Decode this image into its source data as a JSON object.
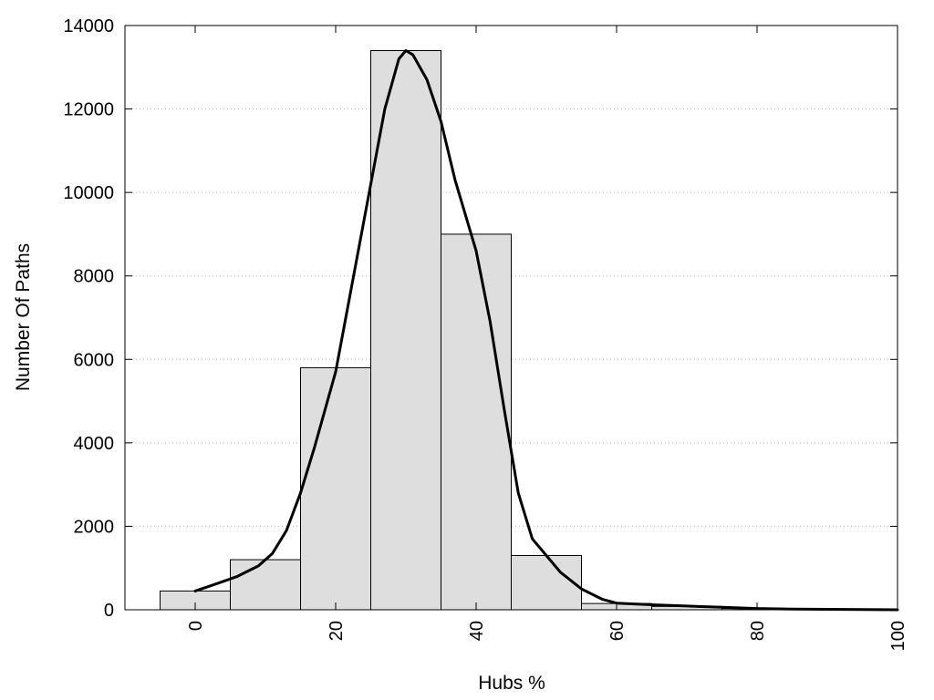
{
  "chart_data": {
    "type": "bar",
    "title": "",
    "xlabel": "Hubs %",
    "ylabel": "Number Of Paths",
    "xlim": [
      -10,
      100
    ],
    "ylim": [
      0,
      14000
    ],
    "x_ticks": [
      0,
      20,
      40,
      60,
      80,
      100
    ],
    "y_ticks": [
      0,
      2000,
      4000,
      6000,
      8000,
      10000,
      12000,
      14000
    ],
    "grid": "horizontal-dotted",
    "colors": {
      "bar_fill": "#dedede",
      "bar_stroke": "#000000",
      "curve": "#000000",
      "grid": "#bbbbbb"
    },
    "bin_width": 10,
    "bins": [
      {
        "center": 0,
        "value": 450
      },
      {
        "center": 10,
        "value": 1200
      },
      {
        "center": 20,
        "value": 5800
      },
      {
        "center": 30,
        "value": 13400
      },
      {
        "center": 40,
        "value": 9000
      },
      {
        "center": 50,
        "value": 1300
      },
      {
        "center": 60,
        "value": 150
      },
      {
        "center": 70,
        "value": 80
      },
      {
        "center": 80,
        "value": 30
      },
      {
        "center": 90,
        "value": 15
      }
    ],
    "curve": {
      "x": [
        0,
        3,
        6,
        9,
        11,
        13,
        15,
        17,
        20,
        23,
        25,
        27,
        29,
        30,
        31,
        33,
        35,
        37,
        40,
        42,
        44,
        46,
        48,
        50,
        52,
        55,
        58,
        60,
        65,
        70,
        75,
        80,
        85,
        90,
        95,
        100
      ],
      "y": [
        450,
        620,
        800,
        1050,
        1350,
        1900,
        2800,
        3900,
        5700,
        8400,
        10200,
        12000,
        13200,
        13400,
        13300,
        12700,
        11700,
        10300,
        8600,
        6900,
        4800,
        2800,
        1700,
        1300,
        900,
        500,
        250,
        160,
        120,
        90,
        60,
        30,
        15,
        10,
        5,
        0
      ]
    }
  }
}
